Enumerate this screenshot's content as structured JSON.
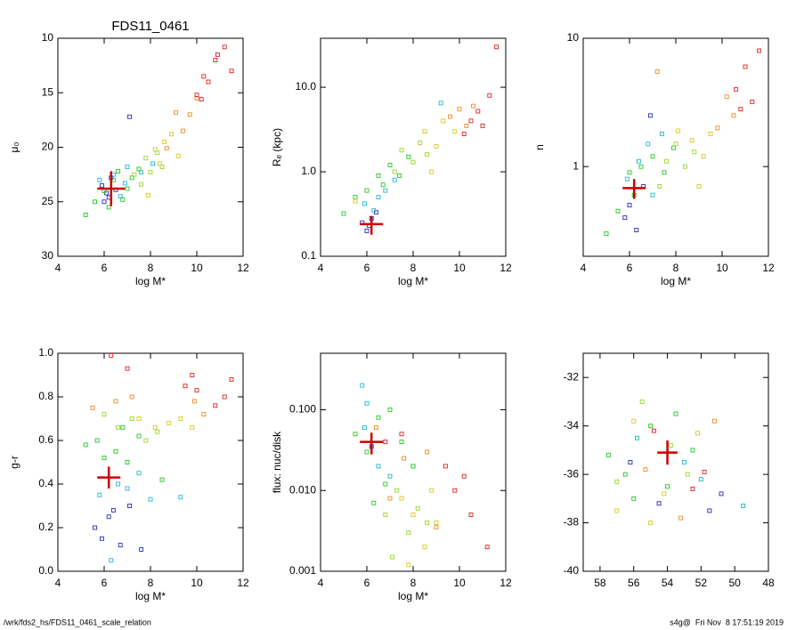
{
  "chart_data": [
    {
      "type": "scatter",
      "title": "FDS11_0461",
      "xlabel": "log M*",
      "ylabel": "μ₀",
      "xlim": [
        4,
        12
      ],
      "ylim": [
        30,
        10
      ],
      "xticks": [
        4,
        6,
        8,
        10,
        12
      ],
      "yticks": [
        10,
        15,
        20,
        25,
        30
      ],
      "ylog": false,
      "series": [
        {
          "color": "#2a2ab8",
          "x": [
            5.9,
            6.1,
            6.3,
            6.0,
            6.5,
            7.1,
            6.2
          ],
          "y": [
            23.5,
            24.2,
            22.8,
            25.0,
            23.9,
            17.2,
            24.6
          ]
        },
        {
          "color": "#22b8d0",
          "x": [
            5.8,
            6.4,
            6.7,
            7.0,
            7.6,
            8.1,
            6.9
          ],
          "y": [
            23.0,
            22.5,
            24.5,
            21.8,
            22.3,
            21.5,
            23.3
          ]
        },
        {
          "color": "#22c822",
          "x": [
            5.2,
            5.6,
            6.0,
            6.4,
            6.8,
            7.2,
            7.5,
            6.2,
            6.6,
            7.0
          ],
          "y": [
            26.2,
            25.0,
            24.0,
            23.0,
            24.8,
            22.8,
            22.0,
            25.5,
            22.2,
            23.8
          ]
        },
        {
          "color": "#9ad822",
          "x": [
            7.3,
            7.8,
            8.0,
            8.3,
            7.6,
            8.5
          ],
          "y": [
            22.5,
            21.0,
            22.3,
            20.5,
            23.4,
            21.8
          ]
        },
        {
          "color": "#d8c822",
          "x": [
            8.2,
            8.6,
            8.9,
            9.2,
            8.4,
            7.9
          ],
          "y": [
            20.2,
            19.5,
            18.8,
            20.8,
            21.5,
            24.4
          ]
        },
        {
          "color": "#ee8a22",
          "x": [
            9.4,
            9.7,
            10.0,
            9.1,
            8.7
          ],
          "y": [
            18.5,
            17.0,
            15.5,
            16.8,
            20.1
          ]
        },
        {
          "color": "#dd2222",
          "x": [
            10.2,
            10.5,
            10.8,
            11.2,
            11.5,
            10.0,
            10.9,
            10.3
          ],
          "y": [
            15.6,
            14.0,
            12.0,
            10.8,
            13.0,
            15.2,
            11.5,
            13.5
          ]
        }
      ],
      "marker": {
        "color": "#cc0000",
        "x": 6.3,
        "y": 23.8,
        "xerr": 0.6,
        "yerr": 1.6
      }
    },
    {
      "type": "scatter",
      "xlabel": "log M*",
      "ylabel": "Rₑ (kpc)",
      "xlim": [
        4,
        12
      ],
      "ylim": [
        0.1,
        38
      ],
      "xticks": [
        4,
        6,
        8,
        10,
        12
      ],
      "yticks": [
        0.1,
        {
          "value": 1,
          "label": "1.0"
        },
        {
          "value": 10,
          "label": "10.0"
        }
      ],
      "ylog": true,
      "series": [
        {
          "color": "#2a2ab8",
          "x": [
            5.8,
            6.0,
            6.2,
            6.4,
            6.1
          ],
          "y": [
            0.25,
            0.2,
            0.28,
            0.33,
            0.23
          ]
        },
        {
          "color": "#22b8d0",
          "x": [
            5.9,
            6.5,
            6.8,
            7.2,
            9.2,
            6.3
          ],
          "y": [
            0.42,
            0.5,
            0.6,
            0.8,
            6.5,
            0.35
          ]
        },
        {
          "color": "#22c822",
          "x": [
            5.0,
            5.5,
            6.0,
            6.5,
            7.0,
            7.4,
            7.8,
            6.7
          ],
          "y": [
            0.32,
            0.5,
            0.6,
            0.9,
            1.2,
            0.9,
            1.5,
            0.7
          ]
        },
        {
          "color": "#9ad822",
          "x": [
            7.5,
            8.0,
            8.3,
            8.6,
            7.2
          ],
          "y": [
            1.8,
            1.3,
            2.2,
            1.6,
            1.0
          ]
        },
        {
          "color": "#d8c822",
          "x": [
            8.5,
            9.0,
            9.3,
            9.8,
            5.5,
            8.8
          ],
          "y": [
            3.0,
            2.0,
            4.0,
            3.0,
            0.45,
            1.0
          ]
        },
        {
          "color": "#ee8a22",
          "x": [
            9.6,
            10.0,
            10.3,
            10.6
          ],
          "y": [
            4.5,
            5.5,
            3.5,
            6.0
          ]
        },
        {
          "color": "#dd2222",
          "x": [
            10.5,
            10.8,
            11.0,
            11.3,
            11.6,
            10.2
          ],
          "y": [
            4.0,
            5.2,
            3.5,
            8.0,
            30,
            2.8
          ]
        }
      ],
      "marker": {
        "color": "#cc0000",
        "x": 6.2,
        "y": 0.24,
        "xerr": 0.5,
        "yerr": 0.06
      }
    },
    {
      "type": "scatter",
      "xlabel": "log M*",
      "ylabel": "n",
      "xlim": [
        4,
        12
      ],
      "ylim": [
        0.2,
        10
      ],
      "xticks": [
        4,
        6,
        8,
        10,
        12
      ],
      "yticks": [
        1,
        10
      ],
      "ylog": true,
      "series": [
        {
          "color": "#2a2ab8",
          "x": [
            5.8,
            6.0,
            6.3,
            6.6,
            6.9
          ],
          "y": [
            0.4,
            0.5,
            0.32,
            0.7,
            2.5
          ]
        },
        {
          "color": "#22b8d0",
          "x": [
            5.9,
            6.4,
            6.8,
            7.4,
            7.0
          ],
          "y": [
            0.8,
            1.1,
            1.5,
            1.8,
            0.6
          ]
        },
        {
          "color": "#22c822",
          "x": [
            5.0,
            5.5,
            6.0,
            6.5,
            7.0,
            7.5,
            7.9,
            6.2
          ],
          "y": [
            0.3,
            0.45,
            0.9,
            1.0,
            1.2,
            0.9,
            1.4,
            0.6
          ]
        },
        {
          "color": "#9ad822",
          "x": [
            7.6,
            8.0,
            8.4,
            8.8,
            7.3
          ],
          "y": [
            1.1,
            1.5,
            1.0,
            1.3,
            0.7
          ]
        },
        {
          "color": "#d8c822",
          "x": [
            8.7,
            9.2,
            9.5,
            9.0,
            8.1
          ],
          "y": [
            1.6,
            1.2,
            1.8,
            0.7,
            1.9
          ]
        },
        {
          "color": "#ee8a22",
          "x": [
            9.8,
            10.2,
            10.5,
            7.2
          ],
          "y": [
            2.0,
            3.5,
            2.5,
            5.5
          ]
        },
        {
          "color": "#dd2222",
          "x": [
            10.6,
            11.0,
            11.3,
            11.6,
            10.8
          ],
          "y": [
            4.0,
            6.0,
            3.2,
            8.0,
            2.8
          ]
        }
      ],
      "marker": {
        "color": "#cc0000",
        "x": 6.2,
        "y": 0.68,
        "xerr": 0.5,
        "yerr": 0.12
      }
    },
    {
      "type": "scatter",
      "xlabel": "log M*",
      "ylabel": "g-r",
      "xlim": [
        4,
        12
      ],
      "ylim": [
        0,
        1
      ],
      "xticks": [
        4,
        6,
        8,
        10,
        12
      ],
      "yticks": [
        {
          "value": 0,
          "label": "0.0"
        },
        0.2,
        0.4,
        0.6,
        0.8,
        {
          "value": 1,
          "label": "1.0"
        }
      ],
      "ylog": false,
      "series": [
        {
          "color": "#2a2ab8",
          "x": [
            5.6,
            5.9,
            6.2,
            6.4,
            6.7,
            7.1,
            7.6
          ],
          "y": [
            0.2,
            0.15,
            0.25,
            0.28,
            0.12,
            0.3,
            0.1
          ]
        },
        {
          "color": "#22b8d0",
          "x": [
            5.8,
            6.6,
            7.0,
            7.5,
            8.0,
            9.3,
            6.3
          ],
          "y": [
            0.35,
            0.4,
            0.38,
            0.45,
            0.33,
            0.34,
            0.05
          ]
        },
        {
          "color": "#22c822",
          "x": [
            5.2,
            5.7,
            6.0,
            6.5,
            7.0,
            7.5,
            8.5,
            6.8
          ],
          "y": [
            0.58,
            0.6,
            0.52,
            0.55,
            0.5,
            0.62,
            0.42,
            0.66
          ]
        },
        {
          "color": "#9ad822",
          "x": [
            6.0,
            6.6,
            7.2,
            7.8,
            8.3
          ],
          "y": [
            0.72,
            0.66,
            0.7,
            0.6,
            0.64
          ]
        },
        {
          "color": "#d8c822",
          "x": [
            7.5,
            8.2,
            8.8,
            9.3,
            9.8
          ],
          "y": [
            0.7,
            0.66,
            0.68,
            0.7,
            0.66
          ]
        },
        {
          "color": "#ee8a22",
          "x": [
            5.5,
            6.5,
            7.2,
            9.9,
            10.3
          ],
          "y": [
            0.75,
            0.78,
            0.8,
            0.78,
            0.72
          ]
        },
        {
          "color": "#dd2222",
          "x": [
            6.3,
            7.0,
            9.5,
            10.0,
            10.8,
            11.2,
            11.5,
            9.8
          ],
          "y": [
            0.99,
            0.93,
            0.85,
            0.83,
            0.76,
            0.8,
            0.88,
            0.9
          ]
        }
      ],
      "marker": {
        "color": "#cc0000",
        "x": 6.2,
        "y": 0.43,
        "xerr": 0.5,
        "yerr": 0.05
      }
    },
    {
      "type": "scatter",
      "xlabel": "log M*",
      "ylabel": "flux: nuc/disk",
      "xlim": [
        4,
        12
      ],
      "ylim": [
        0.001,
        0.5
      ],
      "xticks": [
        4,
        6,
        8,
        10,
        12
      ],
      "yticks": [
        0.001,
        {
          "value": 0.01,
          "label": "0.010"
        },
        {
          "value": 0.1,
          "label": "0.100"
        }
      ],
      "ylog": true,
      "series": [
        {
          "color": "#2a2ab8",
          "x": [
            6.2
          ],
          "y": [
            0.035
          ]
        },
        {
          "color": "#22b8d0",
          "x": [
            5.8,
            6.0,
            6.5,
            7.0,
            5.9
          ],
          "y": [
            0.2,
            0.12,
            0.02,
            0.015,
            0.06
          ]
        },
        {
          "color": "#22c822",
          "x": [
            5.5,
            6.0,
            6.5,
            7.0,
            7.5,
            8.0,
            6.3,
            6.8
          ],
          "y": [
            0.05,
            0.03,
            0.08,
            0.1,
            0.04,
            0.02,
            0.007,
            0.012
          ]
        },
        {
          "color": "#9ad822",
          "x": [
            6.8,
            7.3,
            7.8,
            8.2,
            8.6,
            7.1
          ],
          "y": [
            0.005,
            0.01,
            0.003,
            0.006,
            0.004,
            0.0015
          ]
        },
        {
          "color": "#d8c822",
          "x": [
            7.5,
            8.0,
            8.5,
            9.0,
            7.8,
            8.8
          ],
          "y": [
            0.008,
            0.005,
            0.002,
            0.004,
            0.0012,
            0.01
          ]
        },
        {
          "color": "#ee8a22",
          "x": [
            6.4,
            7.0,
            8.6,
            9.0,
            7.6
          ],
          "y": [
            0.06,
            0.008,
            0.03,
            0.0035,
            0.025
          ]
        },
        {
          "color": "#dd2222",
          "x": [
            9.4,
            9.8,
            10.2,
            10.5,
            11.2,
            6.8,
            7.5
          ],
          "y": [
            0.02,
            0.01,
            0.015,
            0.005,
            0.002,
            0.04,
            0.05
          ]
        }
      ],
      "marker": {
        "color": "#cc0000",
        "x": 6.2,
        "y": 0.04,
        "xerr": 0.5,
        "yerr": 0.012
      }
    },
    {
      "type": "scatter",
      "xlim": [
        59,
        48
      ],
      "ylim": [
        -40,
        -31
      ],
      "xticks": [
        58,
        56,
        54,
        52,
        50,
        48
      ],
      "yticks": [
        -40,
        -38,
        -36,
        -34,
        -32
      ],
      "ylog": false,
      "series": [
        {
          "color": "#2a2ab8",
          "x": [
            56.2,
            54.5,
            51.5,
            50.8
          ],
          "y": [
            -35.5,
            -37.2,
            -37.5,
            -36.8
          ]
        },
        {
          "color": "#22b8d0",
          "x": [
            55.8,
            52.0,
            49.5,
            53.0
          ],
          "y": [
            -34.5,
            -36.2,
            -37.3,
            -35.5
          ]
        },
        {
          "color": "#22c822",
          "x": [
            57.5,
            56.5,
            55.0,
            53.5,
            52.5,
            54.0,
            56.0
          ],
          "y": [
            -35.2,
            -36.0,
            -34.0,
            -33.5,
            -35.0,
            -36.5,
            -37.0
          ]
        },
        {
          "color": "#9ad822",
          "x": [
            55.5,
            53.8,
            52.8,
            57.0
          ],
          "y": [
            -33.0,
            -34.8,
            -36.0,
            -36.3
          ]
        },
        {
          "color": "#d8c822",
          "x": [
            56.0,
            54.2,
            52.2,
            55.0,
            57.0
          ],
          "y": [
            -33.8,
            -36.8,
            -34.3,
            -38.0,
            -37.5
          ]
        },
        {
          "color": "#ee8a22",
          "x": [
            55.3,
            53.2,
            51.2
          ],
          "y": [
            -35.8,
            -37.8,
            -33.8
          ]
        },
        {
          "color": "#dd2222",
          "x": [
            54.8,
            52.5,
            51.8
          ],
          "y": [
            -34.2,
            -36.6,
            -35.9
          ]
        }
      ],
      "marker": {
        "color": "#cc0000",
        "x": 54.0,
        "y": -35.1,
        "xerr": 0.6,
        "yerr": 0.5
      }
    }
  ],
  "footer": {
    "left": "/wrk/fds2_hs/FDS11_0461_scale_relation",
    "right": "s4g@  Fri Nov  8 17:51:19 2019"
  }
}
